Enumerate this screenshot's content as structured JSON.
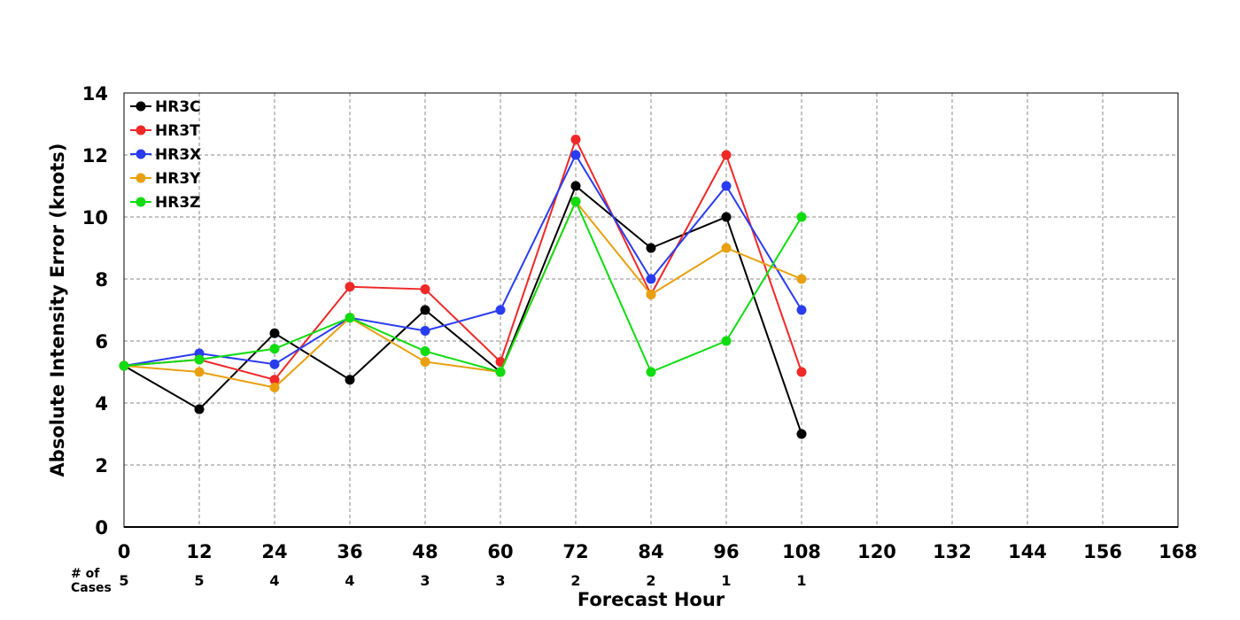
{
  "chart_data": {
    "type": "line",
    "title": "",
    "xlabel": "Forecast Hour",
    "ylabel": "Absolute Intensity Error (knots)",
    "xlim": [
      0,
      168
    ],
    "ylim": [
      0,
      14
    ],
    "x_ticks": [
      "0",
      "12",
      "24",
      "36",
      "48",
      "60",
      "72",
      "84",
      "96",
      "108",
      "120",
      "132",
      "144",
      "156",
      "168"
    ],
    "y_ticks": [
      "0",
      "2",
      "4",
      "6",
      "8",
      "10",
      "12",
      "14"
    ],
    "grid": true,
    "legend_position": "top-left",
    "x": [
      0,
      12,
      24,
      36,
      48,
      60,
      72,
      84,
      96,
      108
    ],
    "series": [
      {
        "name": "HR3C",
        "color": "#000000",
        "values": [
          5.2,
          3.8,
          6.25,
          4.75,
          7.0,
          5.0,
          11.0,
          9.0,
          10.0,
          3.0
        ]
      },
      {
        "name": "HR3T",
        "color": "#f02828",
        "values": [
          5.2,
          5.4,
          4.75,
          7.75,
          7.67,
          5.33,
          12.5,
          7.5,
          12.0,
          5.0
        ]
      },
      {
        "name": "HR3X",
        "color": "#2a3cf0",
        "values": [
          5.2,
          5.6,
          5.25,
          6.75,
          6.33,
          7.0,
          12.0,
          8.0,
          11.0,
          7.0
        ]
      },
      {
        "name": "HR3Y",
        "color": "#e8a010",
        "values": [
          5.2,
          5.0,
          4.5,
          6.75,
          5.33,
          5.0,
          10.5,
          7.5,
          9.0,
          8.0
        ]
      },
      {
        "name": "HR3Z",
        "color": "#10dc10",
        "values": [
          5.2,
          5.4,
          5.75,
          6.75,
          5.67,
          5.0,
          10.5,
          5.0,
          6.0,
          10.0
        ]
      }
    ],
    "cases_label": "# of Cases",
    "cases_label_lines": [
      "# of",
      "Cases"
    ],
    "cases": [
      "5",
      "5",
      "4",
      "4",
      "3",
      "3",
      "2",
      "2",
      "1",
      "1"
    ]
  }
}
